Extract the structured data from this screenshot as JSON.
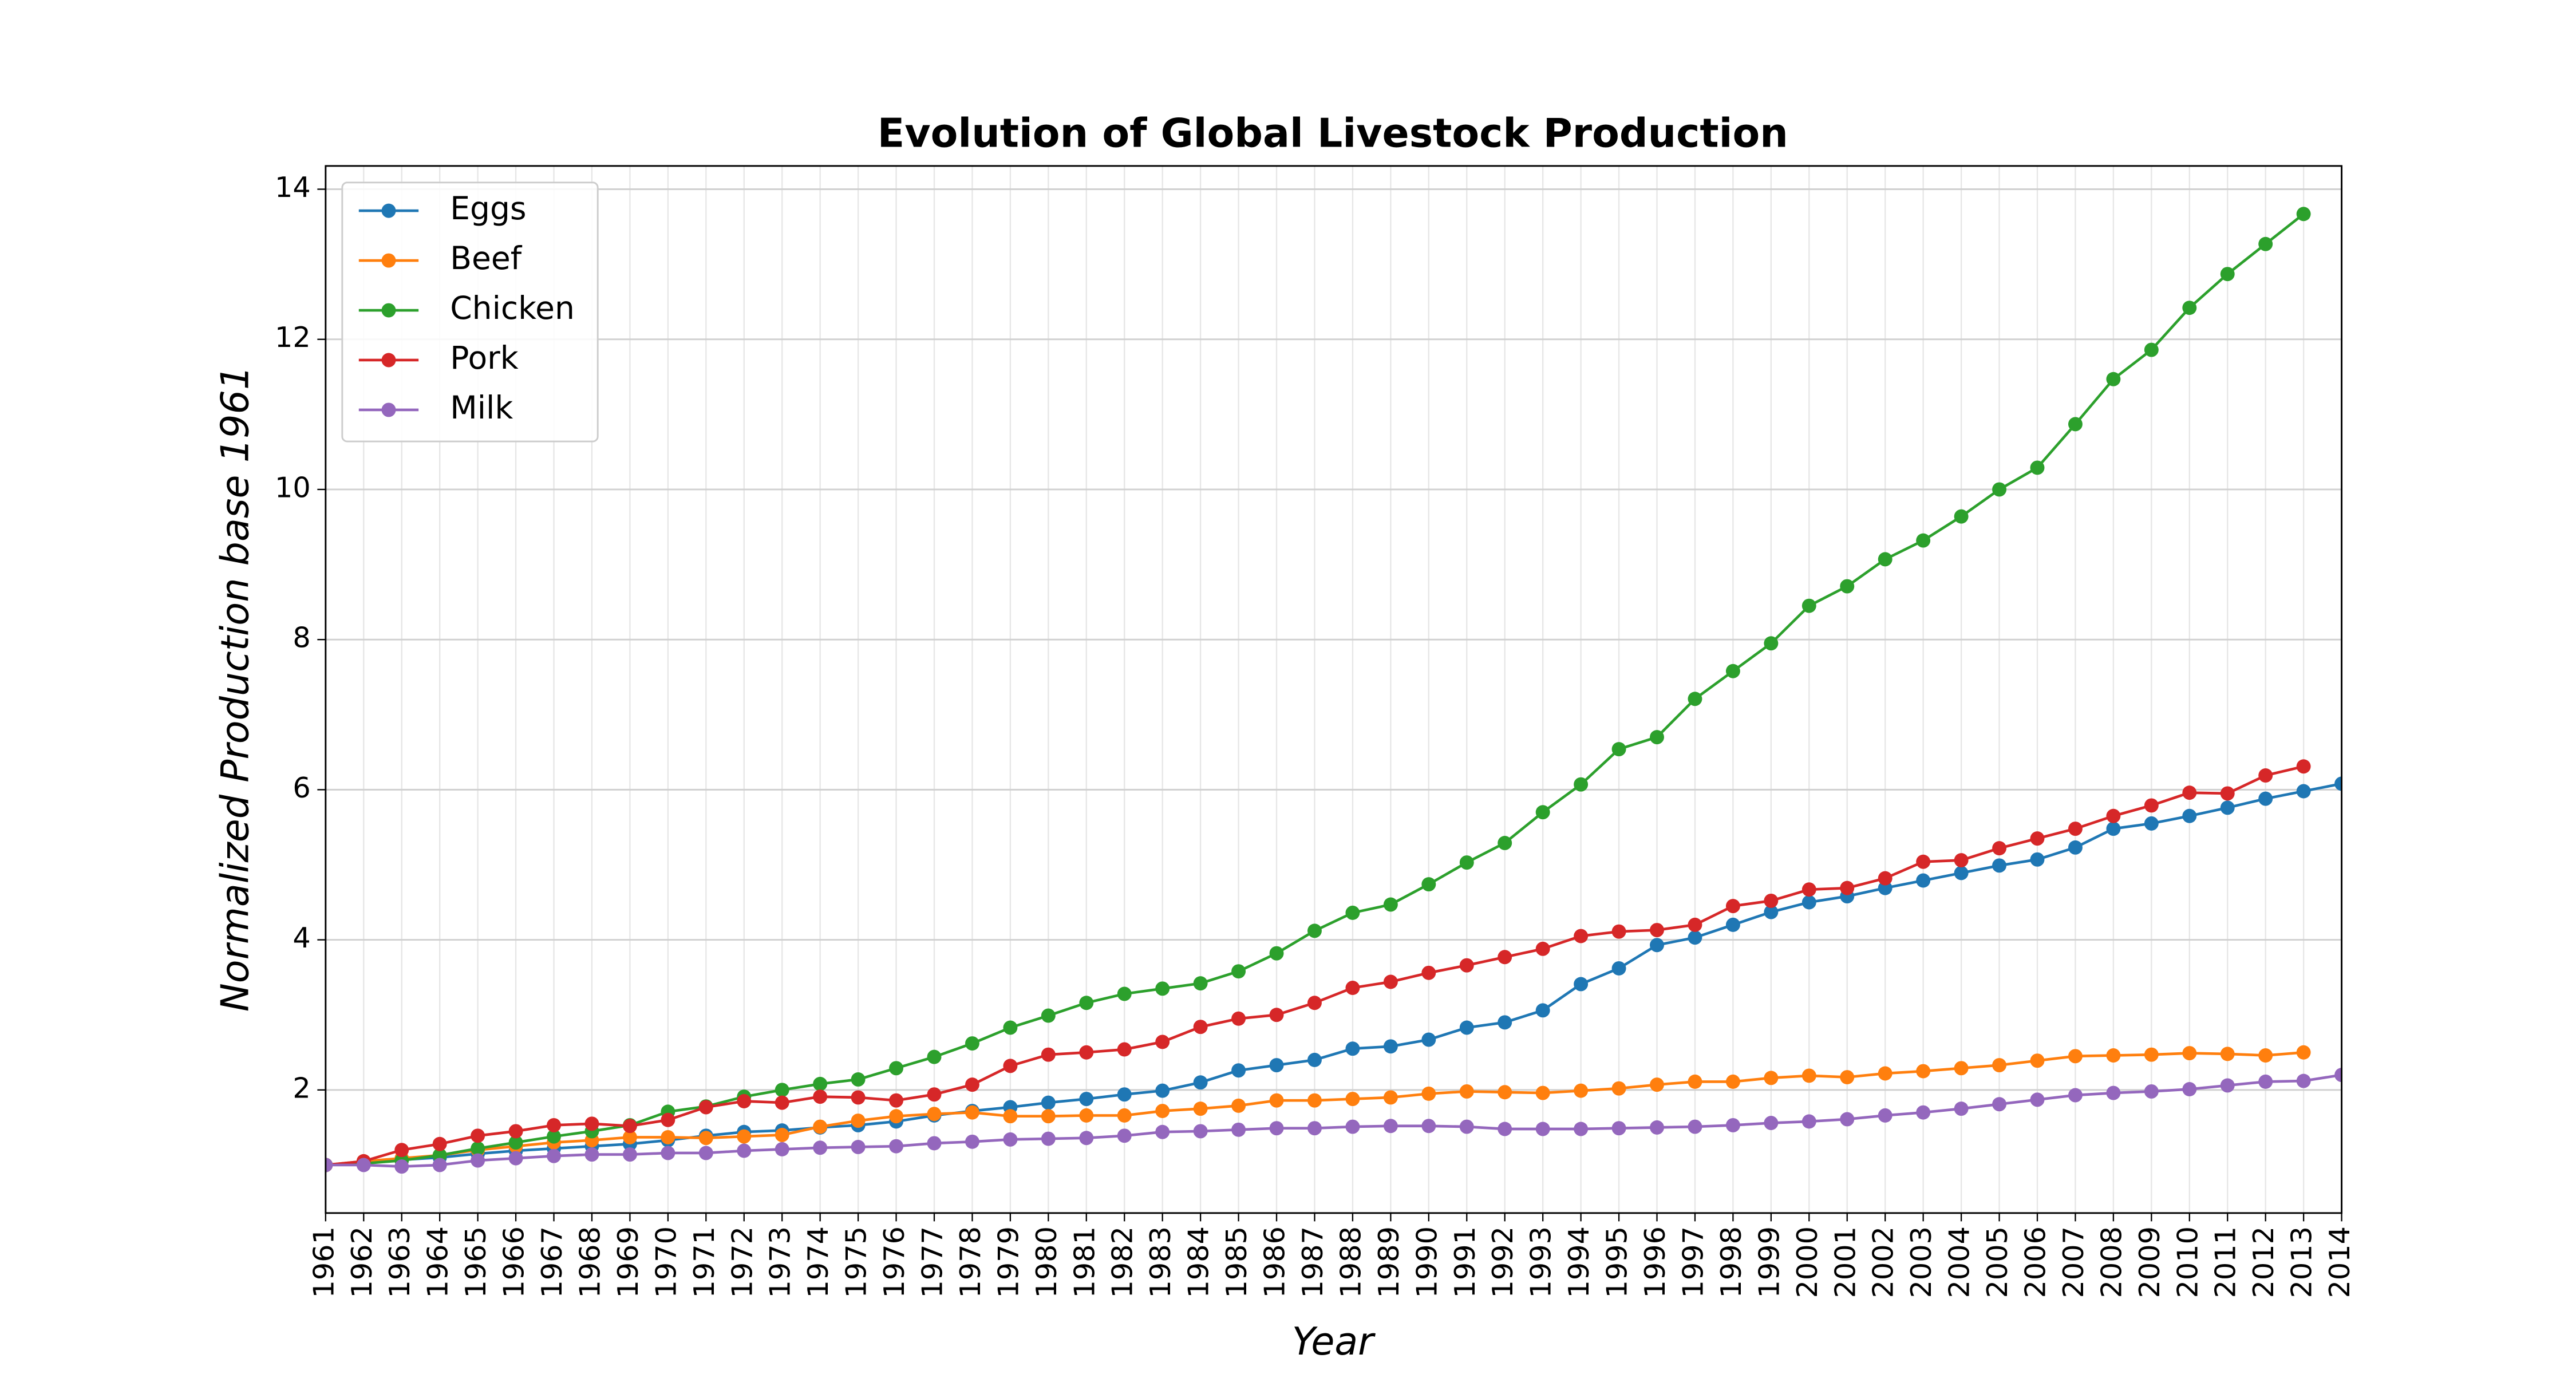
{
  "chart_data": {
    "type": "line",
    "title": "Evolution of Global Livestock Production",
    "xlabel": "Year",
    "ylabel": "Normalized Production base 1961",
    "x": [
      1961,
      1962,
      1963,
      1964,
      1965,
      1966,
      1967,
      1968,
      1969,
      1970,
      1971,
      1972,
      1973,
      1974,
      1975,
      1976,
      1977,
      1978,
      1979,
      1980,
      1981,
      1982,
      1983,
      1984,
      1985,
      1986,
      1987,
      1988,
      1989,
      1990,
      1991,
      1992,
      1993,
      1994,
      1995,
      1996,
      1997,
      1998,
      1999,
      2000,
      2001,
      2002,
      2003,
      2004,
      2005,
      2006,
      2007,
      2008,
      2009,
      2010,
      2011,
      2012,
      2013,
      2014
    ],
    "xlim": [
      1961,
      2014
    ],
    "xticks": [
      1961,
      1962,
      1963,
      1964,
      1965,
      1966,
      1967,
      1968,
      1969,
      1970,
      1971,
      1972,
      1973,
      1974,
      1975,
      1976,
      1977,
      1978,
      1979,
      1980,
      1981,
      1982,
      1983,
      1984,
      1985,
      1986,
      1987,
      1988,
      1989,
      1990,
      1991,
      1992,
      1993,
      1994,
      1995,
      1996,
      1997,
      1998,
      1999,
      2000,
      2001,
      2002,
      2003,
      2004,
      2005,
      2006,
      2007,
      2008,
      2009,
      2010,
      2011,
      2012,
      2013,
      2014
    ],
    "ylim": [
      0.36,
      14.31
    ],
    "yticks": [
      2,
      4,
      6,
      8,
      10,
      12,
      14
    ],
    "grid": true,
    "legend": "upper left",
    "series": [
      {
        "name": "Eggs",
        "color": "#1f77b4",
        "values": [
          1.0,
          1.03,
          1.07,
          1.1,
          1.15,
          1.19,
          1.22,
          1.25,
          1.28,
          1.33,
          1.39,
          1.44,
          1.46,
          1.5,
          1.53,
          1.58,
          1.66,
          1.72,
          1.77,
          1.83,
          1.88,
          1.94,
          1.99,
          2.1,
          2.26,
          2.33,
          2.4,
          2.55,
          2.58,
          2.67,
          2.83,
          2.9,
          3.06,
          3.41,
          3.62,
          3.93,
          4.03,
          4.2,
          4.37,
          4.5,
          4.58,
          4.69,
          4.79,
          4.89,
          4.99,
          5.07,
          5.23,
          5.48,
          5.55,
          5.65,
          5.76,
          5.88,
          5.98,
          6.08
        ]
      },
      {
        "name": "Beef",
        "color": "#ff7f0e",
        "values": [
          1.0,
          1.05,
          1.09,
          1.13,
          1.2,
          1.25,
          1.3,
          1.33,
          1.37,
          1.37,
          1.36,
          1.38,
          1.4,
          1.51,
          1.59,
          1.65,
          1.68,
          1.7,
          1.65,
          1.65,
          1.66,
          1.66,
          1.72,
          1.75,
          1.79,
          1.86,
          1.86,
          1.88,
          1.9,
          1.95,
          1.98,
          1.97,
          1.96,
          1.99,
          2.02,
          2.07,
          2.11,
          2.11,
          2.16,
          2.19,
          2.17,
          2.22,
          2.25,
          2.29,
          2.33,
          2.39,
          2.45,
          2.46,
          2.47,
          2.49,
          2.48,
          2.46,
          2.5,
          null
        ]
      },
      {
        "name": "Chicken",
        "color": "#2ca02c",
        "values": [
          1.0,
          1.02,
          1.06,
          1.13,
          1.22,
          1.3,
          1.38,
          1.45,
          1.53,
          1.71,
          1.78,
          1.91,
          2.0,
          2.08,
          2.14,
          2.29,
          2.44,
          2.62,
          2.83,
          2.99,
          3.16,
          3.28,
          3.35,
          3.42,
          3.58,
          3.82,
          4.12,
          4.36,
          4.47,
          4.74,
          5.03,
          5.29,
          5.7,
          6.07,
          6.54,
          6.7,
          7.21,
          7.58,
          7.95,
          8.45,
          8.71,
          9.07,
          9.32,
          9.64,
          10.0,
          10.29,
          10.87,
          11.47,
          11.86,
          12.42,
          12.87,
          13.27,
          13.67,
          null
        ]
      },
      {
        "name": "Pork",
        "color": "#d62728",
        "values": [
          1.0,
          1.05,
          1.2,
          1.28,
          1.39,
          1.45,
          1.53,
          1.55,
          1.52,
          1.6,
          1.77,
          1.85,
          1.83,
          1.91,
          1.9,
          1.86,
          1.94,
          2.07,
          2.32,
          2.47,
          2.5,
          2.54,
          2.64,
          2.84,
          2.95,
          3.0,
          3.16,
          3.36,
          3.44,
          3.56,
          3.66,
          3.77,
          3.88,
          4.05,
          4.11,
          4.13,
          4.2,
          4.45,
          4.52,
          4.67,
          4.69,
          4.82,
          5.04,
          5.06,
          5.22,
          5.35,
          5.48,
          5.65,
          5.79,
          5.96,
          5.95,
          6.19,
          6.31,
          null
        ]
      },
      {
        "name": "Milk",
        "color": "#9467bd",
        "values": [
          1.0,
          1.0,
          0.98,
          1.0,
          1.06,
          1.09,
          1.12,
          1.14,
          1.14,
          1.16,
          1.16,
          1.19,
          1.21,
          1.23,
          1.24,
          1.25,
          1.29,
          1.31,
          1.34,
          1.35,
          1.36,
          1.39,
          1.44,
          1.45,
          1.47,
          1.49,
          1.49,
          1.51,
          1.52,
          1.52,
          1.51,
          1.48,
          1.48,
          1.48,
          1.49,
          1.5,
          1.51,
          1.53,
          1.56,
          1.58,
          1.61,
          1.66,
          1.7,
          1.75,
          1.81,
          1.87,
          1.93,
          1.96,
          1.98,
          2.01,
          2.06,
          2.11,
          2.12,
          2.2
        ]
      }
    ]
  }
}
